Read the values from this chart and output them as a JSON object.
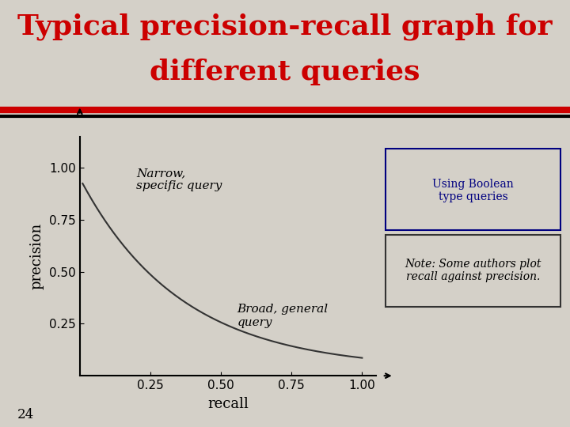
{
  "title_line1": "Typical precision-recall graph for",
  "title_line2": "different queries",
  "title_color": "#cc0000",
  "title_fontsize": 26,
  "bg_color": "#d4d0c8",
  "curve_color": "#333333",
  "axis_color": "#000000",
  "xlabel": "recall",
  "ylabel": "precision",
  "yticks": [
    0.25,
    0.5,
    0.75,
    1.0
  ],
  "xticks": [
    0.25,
    0.5,
    0.75,
    1.0
  ],
  "narrow_label": "Narrow,\nspecific query",
  "broad_label": "Broad, general\nquery",
  "bool_label": "Using Boolean\ntype queries",
  "note_label": "Note: Some authors plot\nrecall against precision.",
  "page_number": "24",
  "header_red_color": "#cc0000",
  "header_black_color": "#000000",
  "bool_box_color": "#000080",
  "note_box_color": "#333333"
}
